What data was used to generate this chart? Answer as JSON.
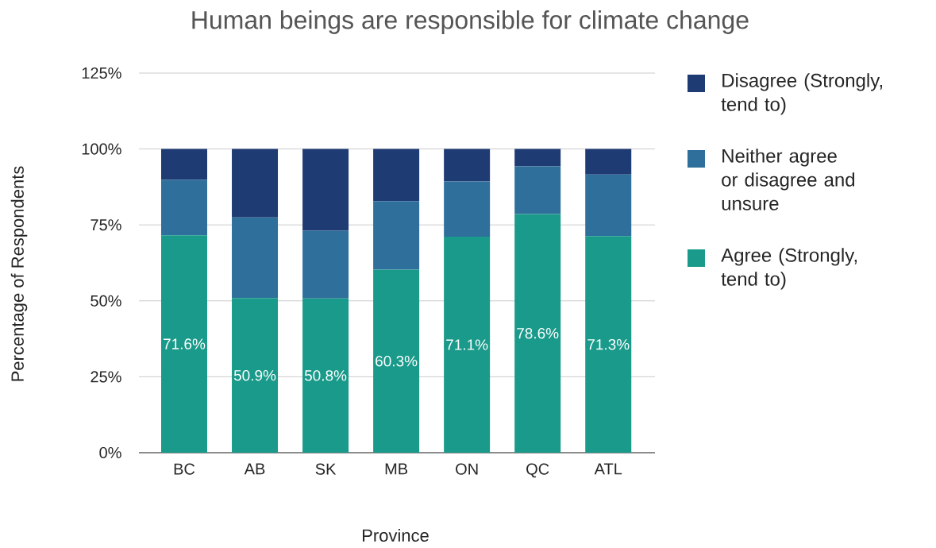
{
  "chart_data": {
    "type": "bar",
    "title": "Human beings are responsible for climate change",
    "xlabel": "Province",
    "ylabel": "Percentage of Respondents",
    "categories": [
      "BC",
      "AB",
      "SK",
      "MB",
      "ON",
      "QC",
      "ATL"
    ],
    "stacked": true,
    "series": [
      {
        "name": "Agree (Strongly, tend to)",
        "color": "#1a9a8a",
        "values": [
          71.6,
          50.9,
          50.8,
          60.3,
          71.1,
          78.6,
          71.3
        ],
        "value_labels": [
          "71.6%",
          "50.9%",
          "50.8%",
          "60.3%",
          "71.1%",
          "78.6%",
          "71.3%"
        ]
      },
      {
        "name": "Neither agree or disagree and unsure",
        "color": "#2e6f9b",
        "values": [
          18.2,
          26.6,
          22.3,
          22.5,
          18.2,
          15.7,
          20.3
        ]
      },
      {
        "name": "Disagree (Strongly, tend to)",
        "color": "#1f3b73",
        "values": [
          10.2,
          22.5,
          26.9,
          17.2,
          10.7,
          5.7,
          8.4
        ]
      }
    ],
    "ylim": [
      0,
      125
    ],
    "yticks": [
      {
        "value": 0,
        "label": "0%"
      },
      {
        "value": 25,
        "label": "25%"
      },
      {
        "value": 50,
        "label": "50%"
      },
      {
        "value": 75,
        "label": "75%"
      },
      {
        "value": 100,
        "label": "100%"
      },
      {
        "value": 125,
        "label": "125%"
      }
    ],
    "grid": "y",
    "legend": "right"
  }
}
